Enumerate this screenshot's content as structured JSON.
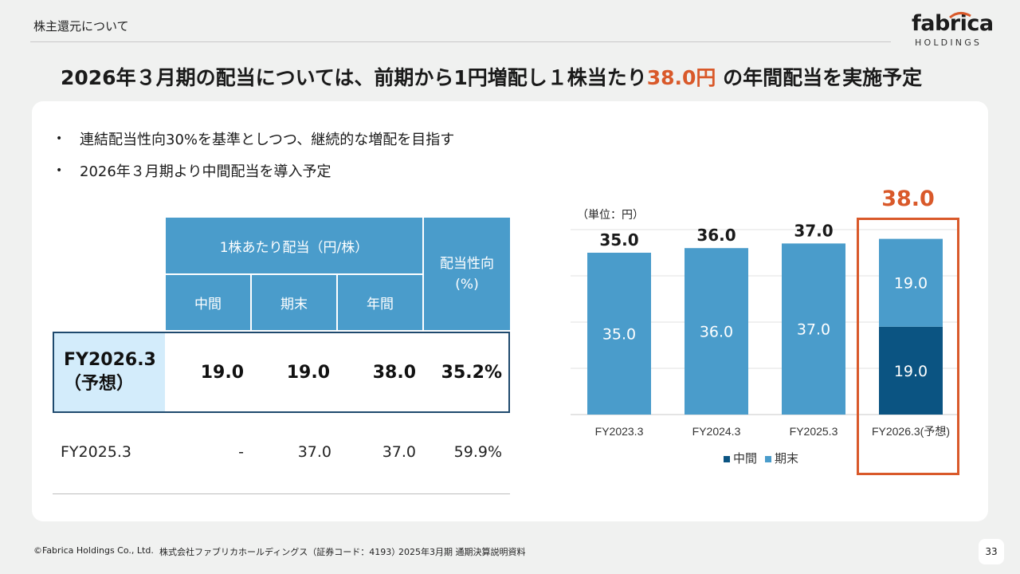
{
  "header": {
    "section": "株主還元について",
    "logo": {
      "word": "fabrica",
      "sub": "HOLDINGS"
    }
  },
  "headline": {
    "before": "2026年３月期の配当については、前期から1円増配し１株当たり",
    "accent": "38.0円",
    "after": " の年間配当を実施予定"
  },
  "bullets": [
    "連結配当性向30%を基準としつつ、継続的な増配を目指す",
    "2026年３月期より中間配当を導入予定"
  ],
  "table": {
    "header_group": "1株あたり配当（円/株）",
    "header_payout": [
      "配当性向",
      "(%)"
    ],
    "sub_headers": [
      "中間",
      "期末",
      "年間"
    ],
    "rows": [
      {
        "label_lines": [
          "FY2026.3",
          "（予想）"
        ],
        "interim": "19.0",
        "yearend": "19.0",
        "annual": "38.0",
        "payout": "35.2%"
      },
      {
        "label_lines": [
          "FY2025.3"
        ],
        "interim": "-",
        "yearend": "37.0",
        "annual": "37.0",
        "payout": "59.9%"
      }
    ]
  },
  "chart": {
    "unit": "（単位：円）",
    "highlight_total": "38.0",
    "legend": [
      {
        "name": "中間",
        "color": "#0b5482"
      },
      {
        "name": "期末",
        "color": "#4a9ccb"
      }
    ]
  },
  "chart_data": {
    "type": "bar",
    "stacked": true,
    "categories": [
      "FY2023.3",
      "FY2024.3",
      "FY2025.3",
      "FY2026.3(予想)"
    ],
    "series": [
      {
        "name": "中間",
        "values": [
          0,
          0,
          0,
          19.0
        ]
      },
      {
        "name": "期末",
        "values": [
          35.0,
          36.0,
          37.0,
          19.0
        ]
      }
    ],
    "totals": [
      35.0,
      36.0,
      37.0,
      null
    ],
    "ylim": [
      0,
      40
    ],
    "grid": true
  },
  "footer": {
    "copyright": "©Fabrica Holdings Co., Ltd.",
    "company": "株式会社ファブリカホールディングス（証券コード：4193）",
    "doc": "2025年3月期 通期決算説明資料",
    "page": "33"
  }
}
